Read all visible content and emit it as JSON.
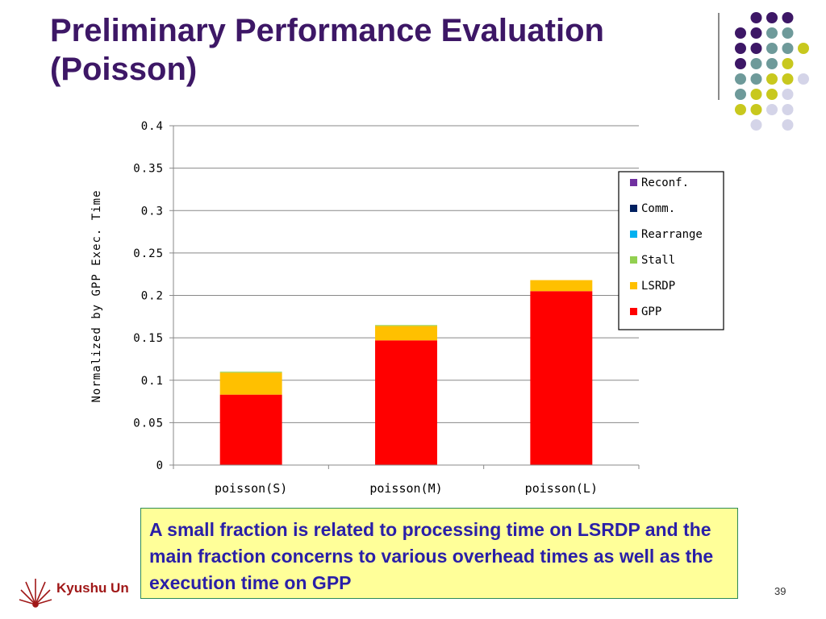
{
  "slide": {
    "title_line1": "Preliminary Performance Evaluation",
    "title_line2": "(Poisson)",
    "callout": "A small fraction is related to processing time on LSRDP and the main fraction concerns to various overhead times as well as the execution time on GPP",
    "footer": "Kyushu Un",
    "page_number": "39"
  },
  "colors": {
    "title": "#3d1766",
    "callout_bg": "#ffff99",
    "callout_text": "#2a1fa8",
    "dot_purple": "#3d1766",
    "dot_teal": "#6e9a9a",
    "dot_yellow": "#c8c81e",
    "dot_lavender": "#d4d4e8"
  },
  "chart_data": {
    "type": "bar",
    "stacked": true,
    "categories": [
      "poisson(S)",
      "poisson(M)",
      "poisson(L)"
    ],
    "ylabel": "Normalized by GPP Exec. Time",
    "ylim": [
      0,
      0.4
    ],
    "yticks": [
      "0",
      "0.05",
      "0.1",
      "0.15",
      "0.2",
      "0.25",
      "0.3",
      "0.35",
      "0.4"
    ],
    "grid": true,
    "legend_position": "right",
    "series": [
      {
        "name": "GPP",
        "color": "#ff0000",
        "values": [
          0.083,
          0.147,
          0.205
        ]
      },
      {
        "name": "LSRDP",
        "color": "#ffc000",
        "values": [
          0.026,
          0.017,
          0.013
        ]
      },
      {
        "name": "Stall",
        "color": "#92d050",
        "values": [
          0.001,
          0.001,
          0.0
        ]
      },
      {
        "name": "Rearrange",
        "color": "#00b0f0",
        "values": [
          0,
          0,
          0
        ]
      },
      {
        "name": "Comm.",
        "color": "#002060",
        "values": [
          0,
          0,
          0
        ]
      },
      {
        "name": "Reconf.",
        "color": "#7030a0",
        "values": [
          0,
          0,
          0
        ]
      }
    ]
  }
}
